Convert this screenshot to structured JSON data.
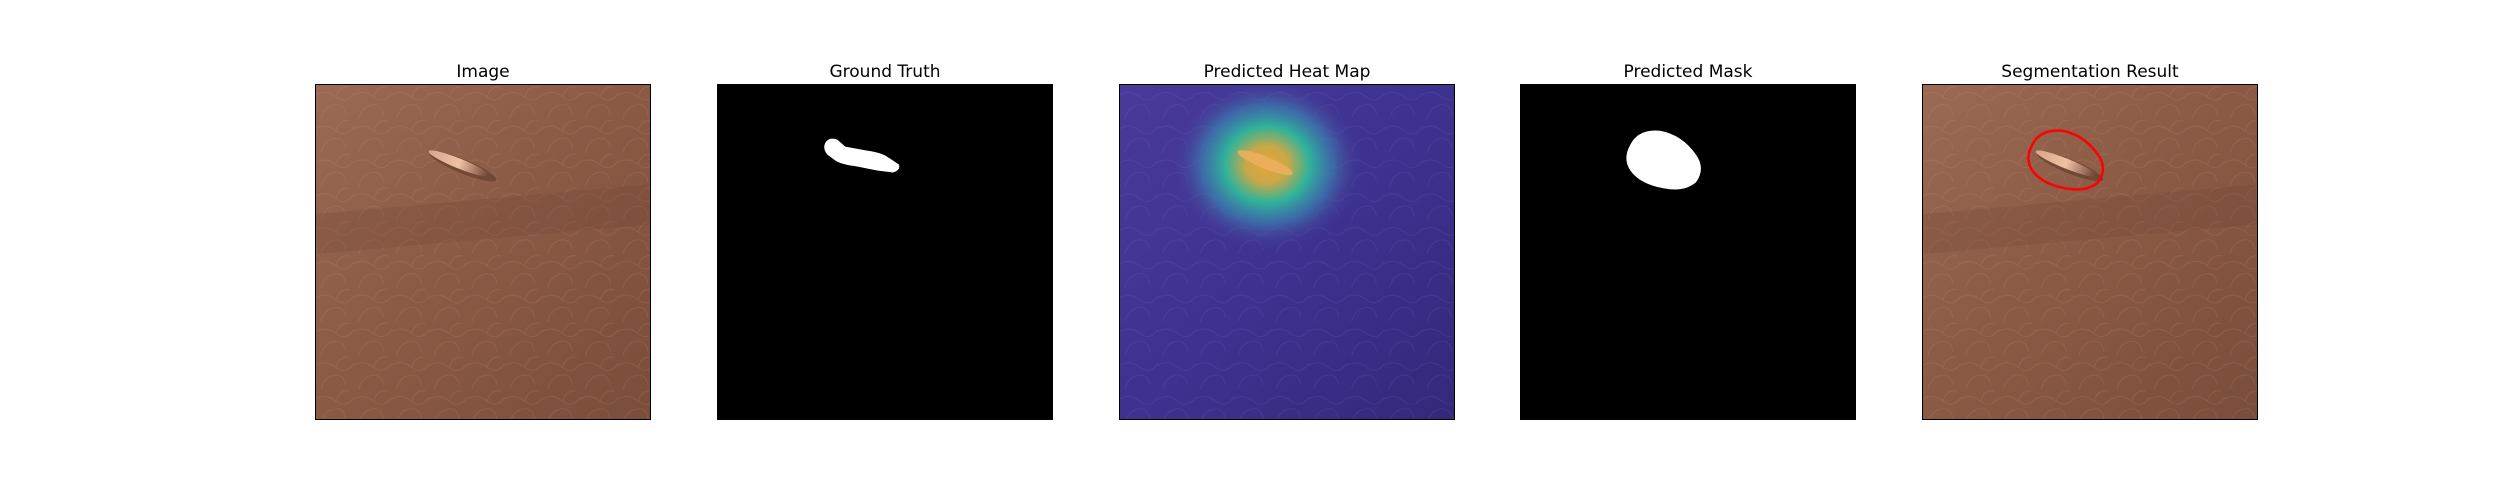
{
  "figure": {
    "panels": [
      {
        "title": "Image"
      },
      {
        "title": "Ground Truth"
      },
      {
        "title": "Predicted Heat Map"
      },
      {
        "title": "Predicted Mask"
      },
      {
        "title": "Segmentation Result"
      }
    ]
  },
  "colors": {
    "background": "#ffffff",
    "leather_base": "#8a5a45",
    "leather_light": "#a0705a",
    "mask_background": "#000000",
    "mask_foreground": "#ffffff",
    "heatmap_low": "#3a2e8c",
    "heatmap_mid": "#2fb39a",
    "heatmap_high": "#e8a23a",
    "contour": "#ff0000"
  }
}
